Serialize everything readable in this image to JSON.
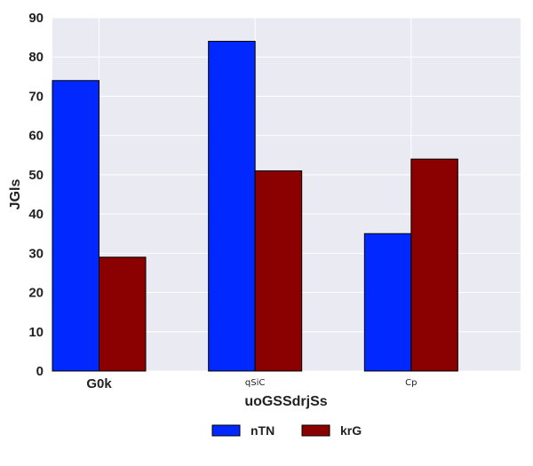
{
  "chart_data": {
    "type": "bar",
    "title": "",
    "xlabel": "uoGSSdrjSs",
    "ylabel": "JGls",
    "categories": [
      "G0k",
      "qSiC",
      "Cp"
    ],
    "series": [
      {
        "name": "nTN",
        "values": [
          74,
          84,
          35
        ],
        "color": "#0028ff"
      },
      {
        "name": "krG",
        "values": [
          29,
          51,
          54
        ],
        "color": "#8b0000"
      }
    ],
    "ylim": [
      0,
      90
    ],
    "yticks": [
      "0",
      "10",
      "20",
      "30",
      "40",
      "50",
      "60",
      "70",
      "80",
      "90"
    ],
    "grid": true,
    "legend_position": "bottom-center",
    "background": "#eaeaf2"
  }
}
